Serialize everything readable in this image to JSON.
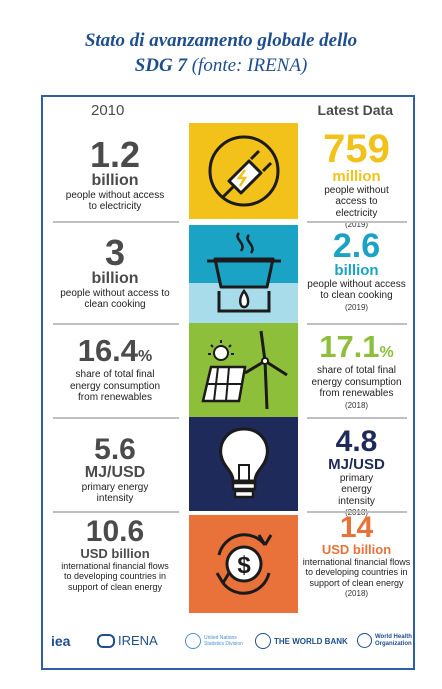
{
  "title": {
    "line1": "Stato di avanzamento globale dello",
    "line2_bold": "SDG 7",
    "line2_italic": " (fonte: IRENA)"
  },
  "headers": {
    "left": "2010",
    "right": "Latest Data"
  },
  "colors": {
    "yellow": "#f2c21b",
    "teal": "#1ba3c6",
    "green": "#8dbf3a",
    "navy": "#1e2a5a",
    "orange": "#e8723a",
    "panel_blue": "#2c5fa8"
  },
  "rows": [
    {
      "left": {
        "value": "1.2",
        "unit": "billion",
        "desc": "people without access to electricity"
      },
      "right": {
        "value": "759",
        "unit": "million",
        "desc": "people without access to electricity",
        "year": "(2019)"
      },
      "icon": "plug-icon"
    },
    {
      "left": {
        "value": "3",
        "unit": "billion",
        "desc": "people without access to clean cooking"
      },
      "right": {
        "value": "2.6",
        "unit": "billion",
        "desc": "people without access to clean cooking",
        "year": "(2019)"
      },
      "icon": "cooking-pot-icon"
    },
    {
      "left": {
        "value": "16.4",
        "unit": "%",
        "desc": "share of total final energy consumption from renewables"
      },
      "right": {
        "value": "17.1",
        "unit": "%",
        "desc": "share of total final energy consumption from renewables",
        "year": "(2018)"
      },
      "icon": "solar-wind-icon"
    },
    {
      "left": {
        "value": "5.6",
        "unit": "MJ/USD",
        "desc": "primary energy intensity"
      },
      "right": {
        "value": "4.8",
        "unit": "MJ/USD",
        "desc": "primary energy intensity",
        "year": "(2018)"
      },
      "icon": "light-bulb-icon"
    },
    {
      "left": {
        "value": "10.6",
        "unit": "USD billion",
        "desc": "international financial flows to developing countries in support of clean energy"
      },
      "right": {
        "value": "14",
        "unit": "USD billion",
        "desc": "international financial flows to developing countries in support of clean energy",
        "year": "(2018)"
      },
      "icon": "dollar-cycle-icon"
    }
  ],
  "logos": {
    "iea": "iea",
    "irena": "IRENA",
    "un": "United Nations Statistics Division",
    "worldbank": "THE WORLD BANK",
    "who_1": "World Health",
    "who_2": "Organization"
  }
}
